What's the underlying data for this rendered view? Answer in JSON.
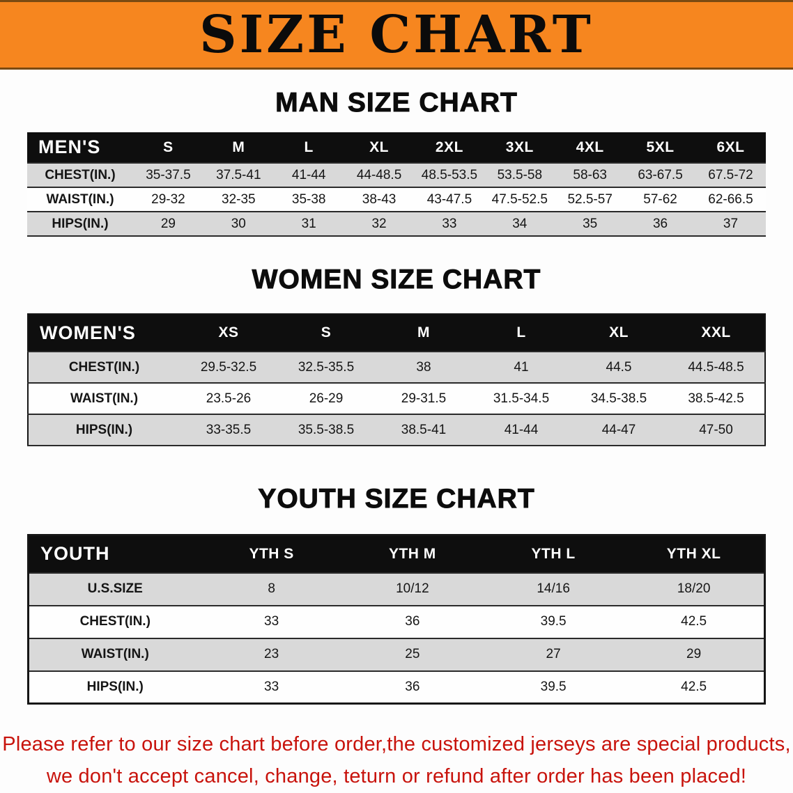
{
  "banner": {
    "title": "SIZE CHART",
    "bg_color": "#f6861f",
    "text_color": "#0b0b0b"
  },
  "sections": [
    {
      "title": "MAN SIZE CHART",
      "table": {
        "header": [
          "MEN'S",
          "S",
          "M",
          "L",
          "XL",
          "2XL",
          "3XL",
          "4XL",
          "5XL",
          "6XL"
        ],
        "rows": [
          {
            "label": "CHEST(IN.)",
            "values": [
              "35-37.5",
              "37.5-41",
              "41-44",
              "44-48.5",
              "48.5-53.5",
              "53.5-58",
              "58-63",
              "63-67.5",
              "67.5-72"
            ]
          },
          {
            "label": "WAIST(IN.)",
            "values": [
              "29-32",
              "32-35",
              "35-38",
              "38-43",
              "43-47.5",
              "47.5-52.5",
              "52.5-57",
              "57-62",
              "62-66.5"
            ]
          },
          {
            "label": "HIPS(IN.)",
            "values": [
              "29",
              "30",
              "31",
              "32",
              "33",
              "34",
              "35",
              "36",
              "37"
            ]
          }
        ]
      }
    },
    {
      "title": "WOMEN SIZE CHART",
      "table": {
        "header": [
          "WOMEN'S",
          "XS",
          "S",
          "M",
          "L",
          "XL",
          "XXL"
        ],
        "rows": [
          {
            "label": "CHEST(IN.)",
            "values": [
              "29.5-32.5",
              "32.5-35.5",
              "38",
              "41",
              "44.5",
              "44.5-48.5"
            ]
          },
          {
            "label": "WAIST(IN.)",
            "values": [
              "23.5-26",
              "26-29",
              "29-31.5",
              "31.5-34.5",
              "34.5-38.5",
              "38.5-42.5"
            ]
          },
          {
            "label": "HIPS(IN.)",
            "values": [
              "33-35.5",
              "35.5-38.5",
              "38.5-41",
              "41-44",
              "44-47",
              "47-50"
            ]
          }
        ]
      }
    },
    {
      "title": "YOUTH SIZE CHART",
      "table": {
        "header": [
          "YOUTH",
          "YTH S",
          "YTH M",
          "YTH L",
          "YTH XL"
        ],
        "rows": [
          {
            "label": "U.S.SIZE",
            "values": [
              "8",
              "10/12",
              "14/16",
              "18/20"
            ]
          },
          {
            "label": "CHEST(IN.)",
            "values": [
              "33",
              "36",
              "39.5",
              "42.5"
            ]
          },
          {
            "label": "WAIST(IN.)",
            "values": [
              "23",
              "25",
              "27",
              "29"
            ]
          },
          {
            "label": "HIPS(IN.)",
            "values": [
              "33",
              "36",
              "39.5",
              "42.5"
            ]
          }
        ]
      }
    }
  ],
  "disclaimer": {
    "color": "#c8130c",
    "lines": [
      "Please refer to our size chart before order,the customized jerseys are special products,",
      "we don't accept cancel, change, teturn or refund after order has been placed!"
    ]
  }
}
